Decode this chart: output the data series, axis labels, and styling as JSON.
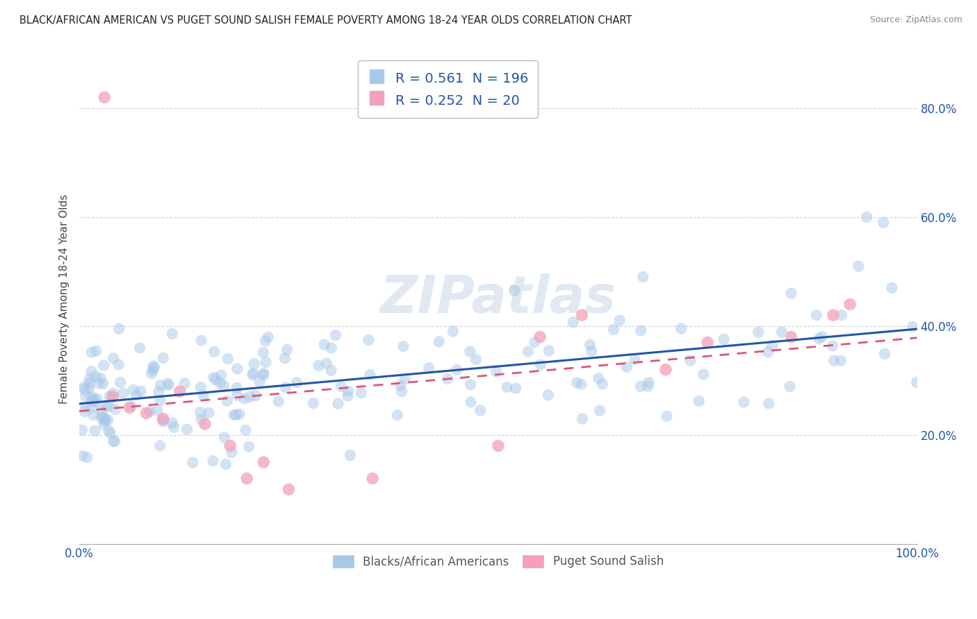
{
  "title": "BLACK/AFRICAN AMERICAN VS PUGET SOUND SALISH FEMALE POVERTY AMONG 18-24 YEAR OLDS CORRELATION CHART",
  "source": "Source: ZipAtlas.com",
  "ylabel": "Female Poverty Among 18-24 Year Olds",
  "xlim": [
    0,
    1
  ],
  "ylim": [
    0,
    0.9
  ],
  "ytick_vals": [
    0.2,
    0.4,
    0.6,
    0.8
  ],
  "ytick_labels": [
    "20.0%",
    "40.0%",
    "60.0%",
    "80.0%"
  ],
  "xtick_vals": [
    0.0,
    1.0
  ],
  "xtick_labels": [
    "0.0%",
    "100.0%"
  ],
  "blue_R": 0.561,
  "blue_N": 196,
  "pink_R": 0.252,
  "pink_N": 20,
  "blue_color": "#A8C8E8",
  "pink_color": "#F4A0B8",
  "blue_line_color": "#2255AA",
  "pink_line_color": "#DD5577",
  "legend_label_blue": "Blacks/African Americans",
  "legend_label_pink": "Puget Sound Salish",
  "watermark": "ZIPatlas",
  "background_color": "#FFFFFF",
  "grid_color": "#CCCCCC",
  "title_color": "#222222",
  "title_fontsize": 10.5,
  "axis_label_color": "#444444",
  "legend_text_color": "#2255AA",
  "tick_label_color": "#2255AA"
}
